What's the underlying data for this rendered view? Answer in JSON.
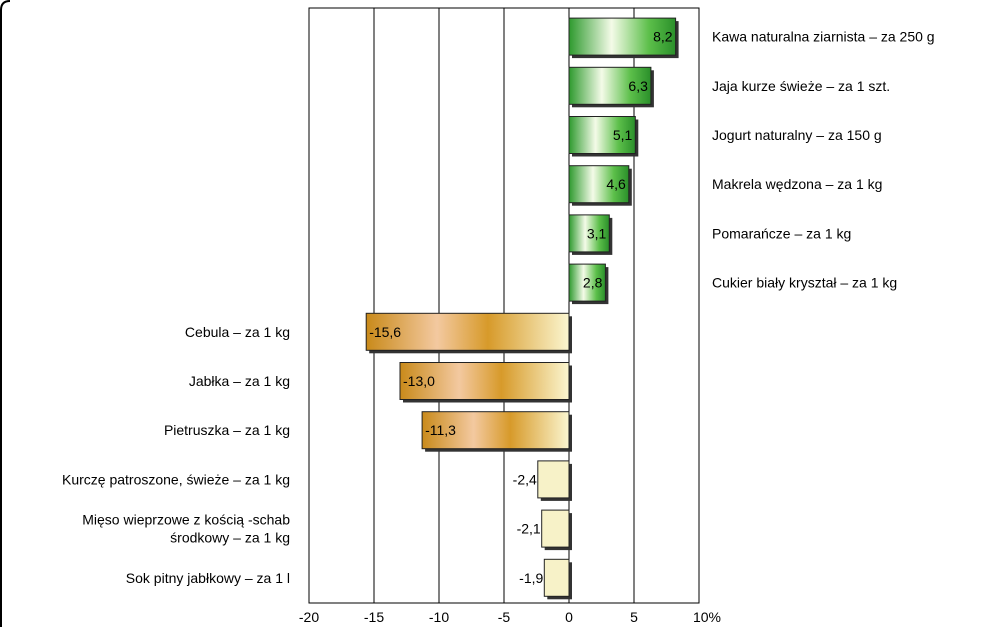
{
  "chart_data": {
    "type": "bar",
    "orientation": "horizontal",
    "categories": [
      "Kawa naturalna ziarnista – za 250 g",
      "Jaja kurze świeże – za 1 szt.",
      "Jogurt naturalny – za 150 g",
      "Makrela wędzona – za 1 kg",
      "Pomarańcze – za 1 kg",
      "Cukier biały kryształ – za 1 kg",
      "Cebula – za 1 kg",
      "Jabłka – za 1 kg",
      "Pietruszka – za 1 kg",
      "Kurczę patroszone, świeże – za 1 kg",
      "Mięso wieprzowe z kością -schab środkowy – za 1 kg",
      "Sok pitny jabłkowy – za 1 l"
    ],
    "values": [
      8.2,
      6.3,
      5.1,
      4.6,
      3.1,
      2.8,
      -15.6,
      -13.0,
      -11.3,
      -2.4,
      -2.1,
      -1.9
    ],
    "value_labels": [
      "8,2",
      "6,3",
      "5,1",
      "4,6",
      "3,1",
      "2,8",
      "-15,6",
      "-13,0",
      "-11,3",
      "-2,4",
      "-2,1",
      "-1,9"
    ],
    "xlim": [
      -20,
      10
    ],
    "xticks": [
      -20,
      -15,
      -10,
      -5,
      0,
      5,
      10
    ],
    "xtick_labels": [
      "-20",
      "-15",
      "-10",
      "-5",
      "0",
      "5",
      "10%"
    ],
    "grid": "vertical",
    "colors": {
      "positive": "#2e9a2e",
      "negative_large": "#c98a1a",
      "negative_small": "#f7f2c8"
    }
  }
}
